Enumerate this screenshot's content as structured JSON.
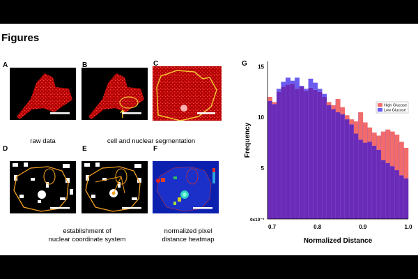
{
  "heading": "Figures",
  "panels": {
    "a": "A",
    "b": "B",
    "c": "C",
    "d": "D",
    "e": "E",
    "f": "F",
    "g": "G"
  },
  "captions": {
    "raw": "raw data",
    "seg": "cell and nuclear segmentation",
    "coord1": "establishment of",
    "coord2": "nuclear coordinate system",
    "heat1": "normalized pixel",
    "heat2": "distance heatmap"
  },
  "chart_data": {
    "type": "bar",
    "xlabel": "Normalized Distance",
    "ylabel": "Frequency",
    "x_ticks": [
      "0.7",
      "0.8",
      "0.9",
      "1.0"
    ],
    "y_ticks": [
      "0x10⁻³",
      "5",
      "10",
      "15"
    ],
    "xlim": [
      0.69,
      1.0
    ],
    "ylim": [
      0,
      15.5
    ],
    "legend_position": "top-right",
    "colors": {
      "high": "#f26b6b",
      "low": "#6a5cf0",
      "overlap": "#6a2bb8"
    },
    "x": [
      0.695,
      0.705,
      0.715,
      0.725,
      0.735,
      0.745,
      0.755,
      0.765,
      0.775,
      0.785,
      0.795,
      0.805,
      0.815,
      0.825,
      0.835,
      0.845,
      0.855,
      0.865,
      0.875,
      0.885,
      0.895,
      0.905,
      0.915,
      0.925,
      0.935,
      0.945,
      0.955,
      0.965,
      0.975,
      0.985,
      0.995
    ],
    "series": [
      {
        "name": "High Glucose",
        "values": [
          12.0,
          11.5,
          12.5,
          13.0,
          13.2,
          13.3,
          12.8,
          13.0,
          12.6,
          12.9,
          12.7,
          12.5,
          12.0,
          11.5,
          11.2,
          11.8,
          11.0,
          10.2,
          9.8,
          9.6,
          10.5,
          9.5,
          9.0,
          8.5,
          8.2,
          8.6,
          8.8,
          8.6,
          8.3,
          7.6,
          7.0
        ]
      },
      {
        "name": "Low Glucose",
        "values": [
          11.6,
          11.3,
          12.8,
          13.5,
          13.9,
          13.6,
          13.9,
          13.1,
          12.8,
          13.8,
          13.4,
          12.8,
          12.3,
          11.2,
          10.8,
          10.5,
          10.3,
          9.8,
          9.3,
          8.4,
          7.8,
          7.5,
          7.6,
          7.2,
          6.8,
          5.8,
          5.5,
          5.2,
          4.8,
          4.3,
          4.0
        ]
      }
    ]
  }
}
